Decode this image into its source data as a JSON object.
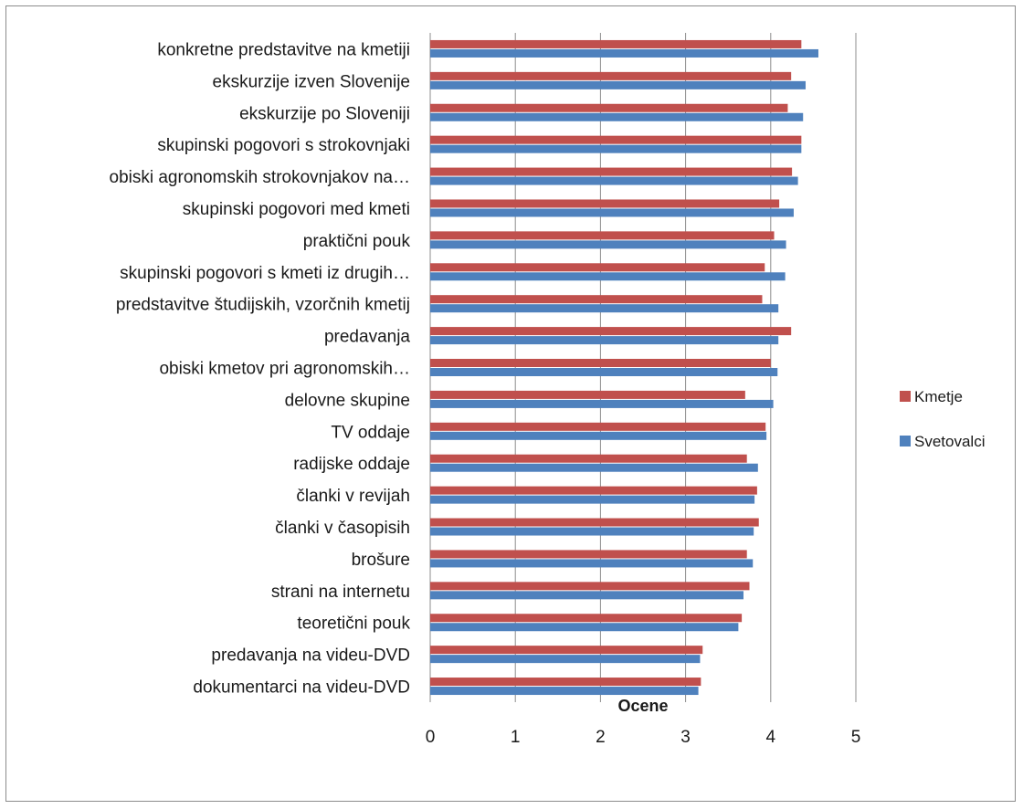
{
  "chart_data": {
    "type": "bar",
    "orientation": "horizontal",
    "categories": [
      "konkretne predstavitve na kmetiji",
      "ekskurzije izven Slovenije",
      "ekskurzije po Sloveniji",
      "skupinski pogovori s strokovnjaki",
      "obiski agronomskih strokovnjakov na…",
      "skupinski pogovori med kmeti",
      "praktični pouk",
      "skupinski pogovori s kmeti iz drugih…",
      "predstavitve študijskih, vzorčnih kmetij",
      "predavanja",
      "obiski kmetov pri agronomskih…",
      "delovne skupine",
      "TV oddaje",
      "radijske oddaje",
      "članki v revijah",
      "članki v časopisih",
      "brošure",
      "strani na internetu",
      "teoretični pouk",
      "predavanja na videu-DVD",
      "dokumentarci na videu-DVD"
    ],
    "series": [
      {
        "name": "Kmetje",
        "color": "#c0504d",
        "values": [
          4.36,
          4.24,
          4.2,
          4.36,
          4.25,
          4.1,
          4.04,
          3.93,
          3.9,
          4.24,
          4.0,
          3.7,
          3.94,
          3.72,
          3.84,
          3.86,
          3.72,
          3.75,
          3.66,
          3.2,
          3.18
        ]
      },
      {
        "name": "Svetovalci",
        "color": "#4f81bd",
        "values": [
          4.56,
          4.41,
          4.38,
          4.36,
          4.32,
          4.27,
          4.18,
          4.17,
          4.09,
          4.09,
          4.08,
          4.03,
          3.95,
          3.85,
          3.81,
          3.8,
          3.79,
          3.68,
          3.62,
          3.17,
          3.15
        ]
      }
    ],
    "xlabel": "Ocene",
    "ylabel": "",
    "title": "",
    "xlim": [
      0,
      5
    ],
    "xticks": [
      "0",
      "1",
      "2",
      "3",
      "4",
      "5"
    ],
    "grid": "vertical",
    "legend_position": "right"
  }
}
